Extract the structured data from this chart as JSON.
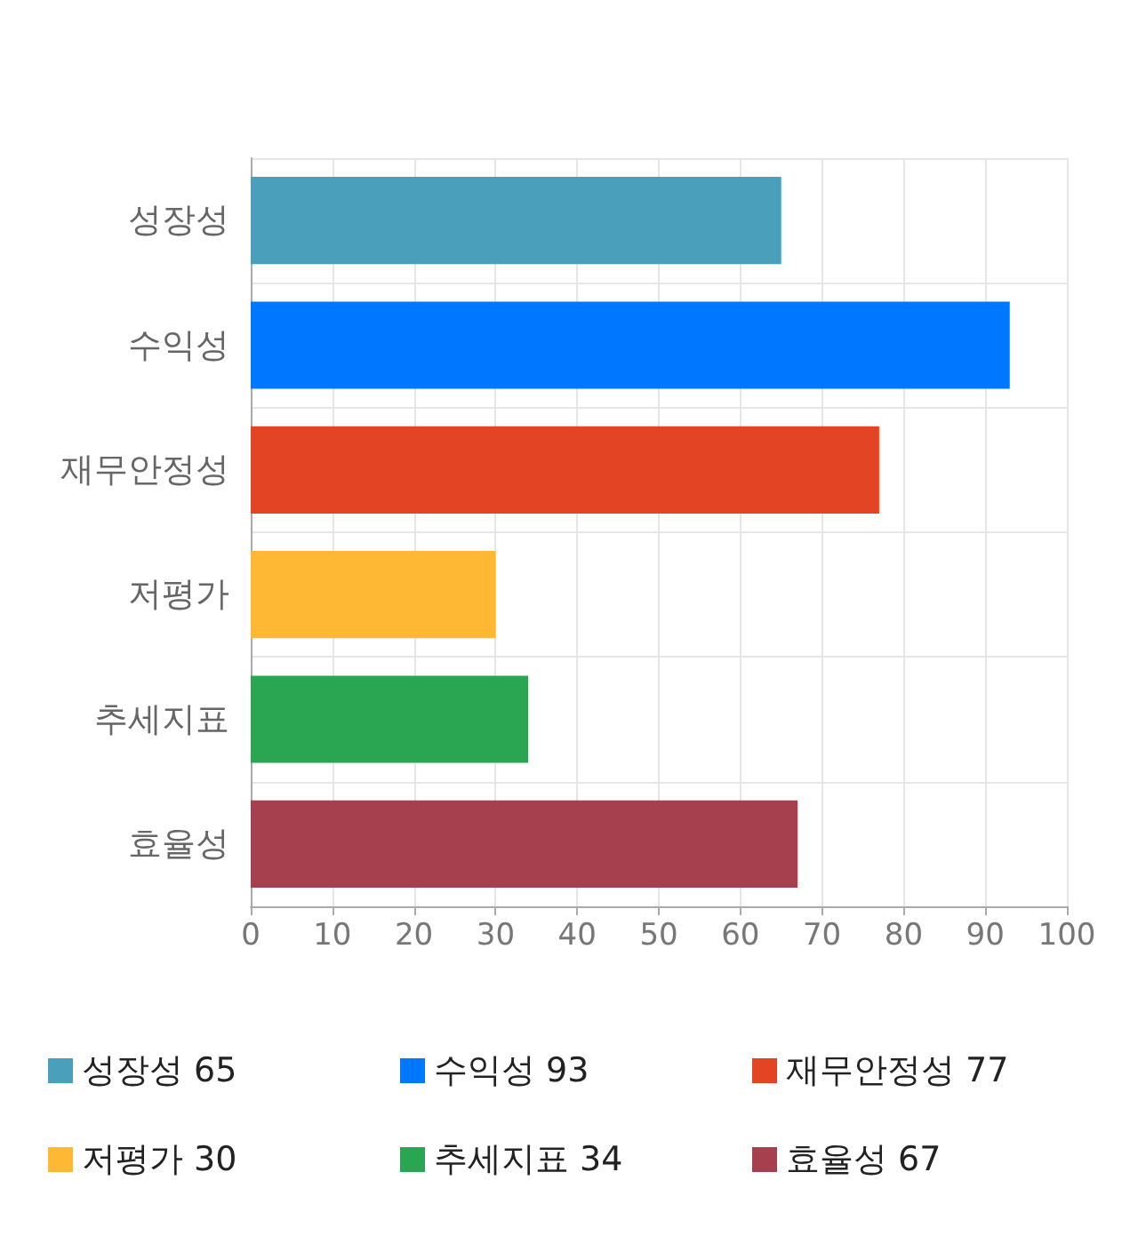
{
  "chart_data": {
    "type": "bar",
    "orientation": "horizontal",
    "categories": [
      "성장성",
      "수익성",
      "재무안정성",
      "저평가",
      "추세지표",
      "효율성"
    ],
    "series": [
      {
        "name": "성장성 65",
        "color": "#4aa0bb",
        "values": [
          65,
          null,
          null,
          null,
          null,
          null
        ]
      },
      {
        "name": "수익성 93",
        "color": "#0077ff",
        "values": [
          null,
          93,
          null,
          null,
          null,
          null
        ]
      },
      {
        "name": "재무안정성 77",
        "color": "#e34424",
        "values": [
          null,
          null,
          77,
          null,
          null,
          null
        ]
      },
      {
        "name": "저평가 30",
        "color": "#ffb833",
        "values": [
          null,
          null,
          null,
          30,
          null,
          null
        ]
      },
      {
        "name": "추세지표 34",
        "color": "#2aa653",
        "values": [
          null,
          null,
          null,
          null,
          34,
          null
        ]
      },
      {
        "name": "효율성 67",
        "color": "#a6404f",
        "values": [
          null,
          null,
          null,
          null,
          null,
          67
        ]
      }
    ],
    "xlim": [
      0,
      100
    ],
    "xticks": [
      0,
      10,
      20,
      30,
      40,
      50,
      60,
      70,
      80,
      90,
      100
    ],
    "grid": true,
    "legend": "bottom"
  }
}
